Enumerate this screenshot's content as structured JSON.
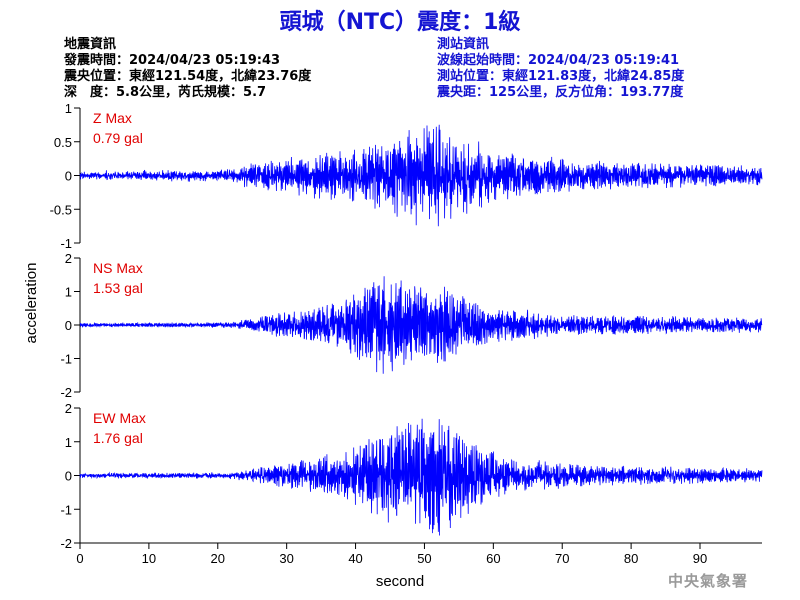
{
  "title": "頭城（NTC）震度：1級",
  "quake_info": {
    "heading": "地震資訊",
    "origin_time": "發震時間：2024/04/23 05:19:43",
    "epicenter": "震央位置：東經121.54度，北緯23.76度",
    "depth_mag": "深　度：5.8公里，芮氏規模：5.7"
  },
  "station_info": {
    "heading": "測站資訊",
    "wave_start": "波線起始時間：2024/04/23 05:19:41",
    "location": "測站位置：東經121.83度，北緯24.85度",
    "distance": "震央距：125公里，反方位角：193.77度"
  },
  "watermark": "中央氣象署",
  "colors": {
    "title": "#1414d2",
    "trace": "#0000ff",
    "max_label": "#e00000",
    "axis": "#000000"
  },
  "chart_data": [
    {
      "type": "line",
      "component": "Z",
      "max_label": "Z Max",
      "max_value": "0.79 gal",
      "ylim": [
        -1,
        1
      ],
      "yticks": [
        -1,
        -0.5,
        0,
        0.5,
        1
      ],
      "ytick_labels": [
        "-1",
        "-0.5",
        "0",
        "0.5",
        "1"
      ],
      "peak_time": 52,
      "noise_level": 0.05,
      "envelope": [
        [
          0,
          0.05
        ],
        [
          20,
          0.07
        ],
        [
          26,
          0.18
        ],
        [
          34,
          0.3
        ],
        [
          42,
          0.42
        ],
        [
          50,
          0.72
        ],
        [
          54,
          0.6
        ],
        [
          62,
          0.32
        ],
        [
          75,
          0.2
        ],
        [
          90,
          0.15
        ],
        [
          99,
          0.13
        ]
      ]
    },
    {
      "type": "line",
      "component": "NS",
      "max_label": "NS Max",
      "max_value": "1.53 gal",
      "ylim": [
        -2,
        2
      ],
      "yticks": [
        -2,
        -1,
        0,
        1,
        2
      ],
      "ytick_labels": [
        "-2",
        "-1",
        "0",
        "1",
        "2"
      ],
      "peak_time": 44,
      "noise_level": 0.04,
      "envelope": [
        [
          0,
          0.05
        ],
        [
          22,
          0.07
        ],
        [
          28,
          0.3
        ],
        [
          38,
          0.65
        ],
        [
          44,
          1.5
        ],
        [
          48,
          1.2
        ],
        [
          53,
          1.05
        ],
        [
          60,
          0.5
        ],
        [
          70,
          0.3
        ],
        [
          85,
          0.24
        ],
        [
          99,
          0.2
        ]
      ]
    },
    {
      "type": "line",
      "component": "EW",
      "max_label": "EW Max",
      "max_value": "1.76 gal",
      "ylim": [
        -2,
        2
      ],
      "yticks": [
        -2,
        -1,
        0,
        1,
        2
      ],
      "ytick_labels": [
        "-2",
        "-1",
        "0",
        "1",
        "2"
      ],
      "peak_time": 52,
      "noise_level": 0.05,
      "envelope": [
        [
          0,
          0.06
        ],
        [
          22,
          0.08
        ],
        [
          30,
          0.35
        ],
        [
          38,
          0.7
        ],
        [
          46,
          1.4
        ],
        [
          52,
          1.7
        ],
        [
          57,
          1.0
        ],
        [
          63,
          0.45
        ],
        [
          75,
          0.28
        ],
        [
          90,
          0.22
        ],
        [
          99,
          0.18
        ]
      ]
    }
  ],
  "x_axis": {
    "xlabel": "second",
    "xlim": [
      0,
      99
    ],
    "xticks": [
      0,
      10,
      20,
      30,
      40,
      50,
      60,
      70,
      80,
      90
    ],
    "xtick_labels": [
      "0",
      "10",
      "20",
      "30",
      "40",
      "50",
      "60",
      "70",
      "80",
      "90"
    ]
  },
  "ylabel": "acceleration"
}
